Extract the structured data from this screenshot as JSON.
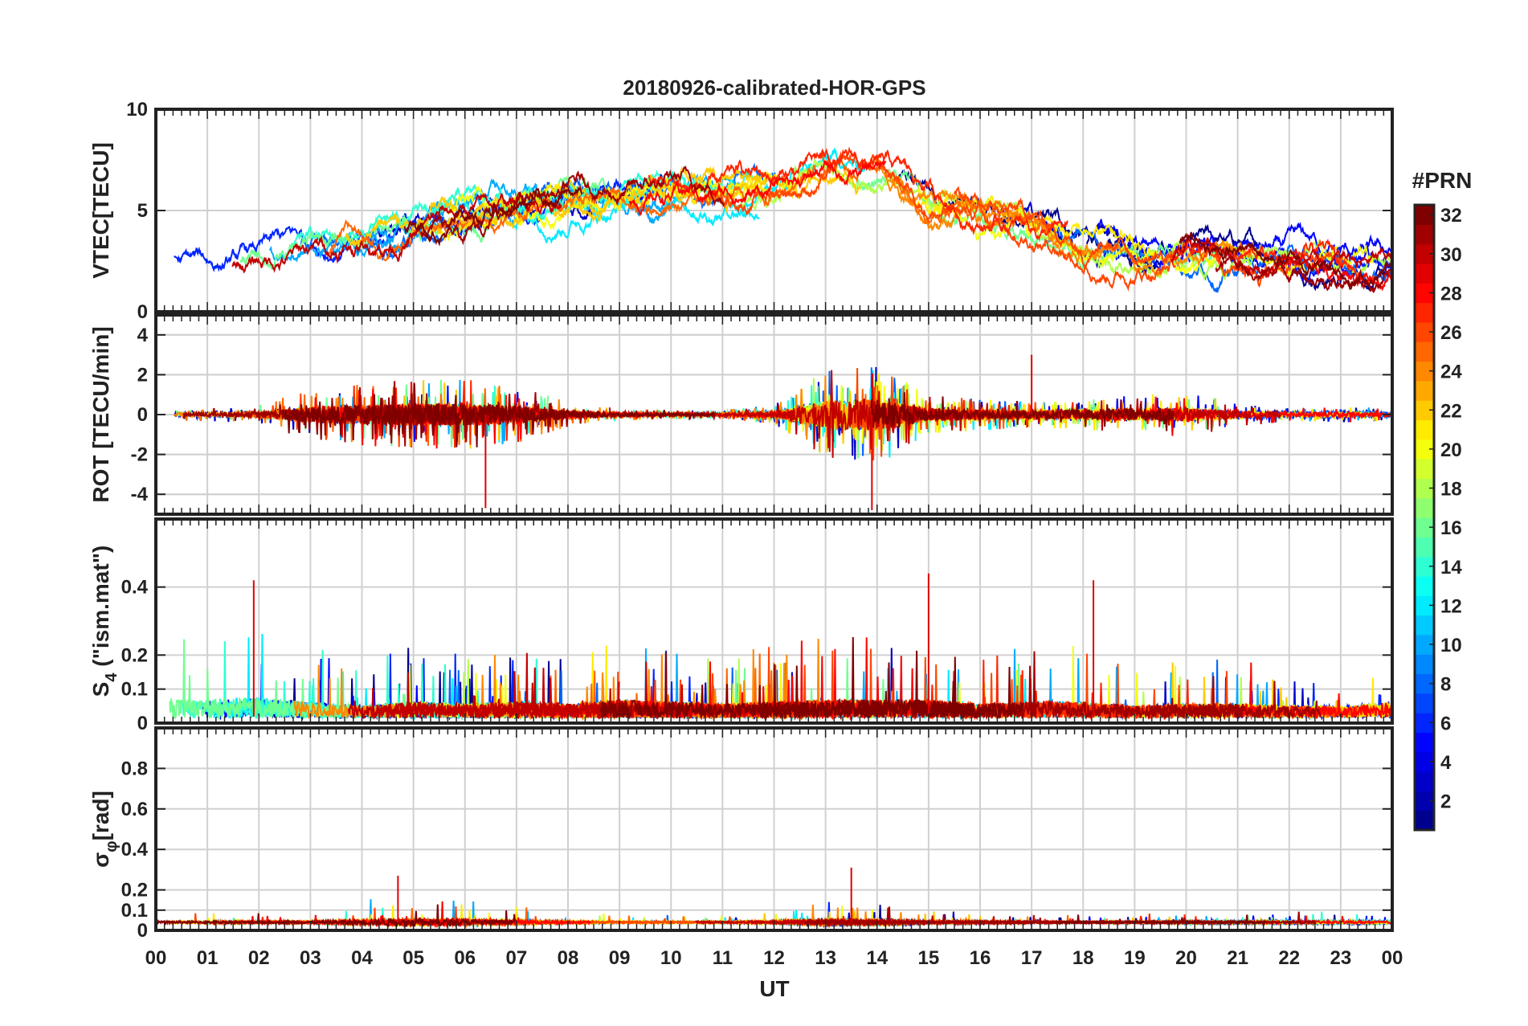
{
  "chart_data": {
    "type": "line",
    "title": "20180926-calibrated-HOR-GPS",
    "xlabel": "UT",
    "x_range": [
      0,
      24
    ],
    "x_tick_labels": [
      "00",
      "01",
      "02",
      "03",
      "04",
      "05",
      "06",
      "07",
      "08",
      "09",
      "10",
      "11",
      "12",
      "13",
      "14",
      "15",
      "16",
      "17",
      "18",
      "19",
      "20",
      "21",
      "22",
      "23",
      "00"
    ],
    "grid": true,
    "panels": [
      {
        "id": "vtec",
        "ylabel": "VTEC[TECU]",
        "ylim": [
          0,
          10
        ],
        "yticks": [
          0,
          5,
          10
        ],
        "envelope_hours": [
          0,
          1,
          2,
          3,
          4,
          5,
          6,
          7,
          8,
          9,
          10,
          11,
          12,
          13,
          14,
          15,
          16,
          17,
          18,
          19,
          20,
          21,
          22,
          23,
          24
        ],
        "envelope_values": [
          2.2,
          2.0,
          2.5,
          3.0,
          3.5,
          4.2,
          4.8,
          5.2,
          5.8,
          6.0,
          6.0,
          5.8,
          6.2,
          7.0,
          6.8,
          5.6,
          4.8,
          4.4,
          3.5,
          3.0,
          2.9,
          2.7,
          2.6,
          2.4,
          2.2
        ]
      },
      {
        "id": "rot",
        "ylabel": "ROT [TECU/min]",
        "ylim": [
          -5,
          5
        ],
        "yticks": [
          -4,
          -2,
          0,
          2,
          4
        ],
        "activity_hours": [
          0,
          1,
          2,
          3,
          4,
          5,
          6,
          7,
          8,
          9,
          10,
          11,
          12,
          13,
          14,
          15,
          16,
          17,
          18,
          19,
          20,
          21,
          22,
          23,
          24
        ],
        "activity_amplitude": [
          0.2,
          0.2,
          0.3,
          0.8,
          1.0,
          1.1,
          1.1,
          0.9,
          0.4,
          0.2,
          0.15,
          0.15,
          0.3,
          1.4,
          1.6,
          0.6,
          0.5,
          0.4,
          0.5,
          0.6,
          0.7,
          0.4,
          0.2,
          0.25,
          0.2
        ]
      },
      {
        "id": "s4",
        "ylabel": "S4 (\"ism.mat\")",
        "ylabel_main": "S",
        "ylabel_sub": "4",
        "ylabel_rest": " (\"ism.mat\")",
        "ylim": [
          0,
          0.6
        ],
        "yticks": [
          0,
          0.1,
          0.2,
          0.4
        ],
        "activity_hours": [
          0,
          1,
          2,
          3,
          4,
          5,
          6,
          7,
          8,
          9,
          10,
          11,
          12,
          13,
          14,
          15,
          16,
          17,
          18,
          19,
          20,
          21,
          22,
          23,
          24
        ],
        "activity_amplitude": [
          0.1,
          0.09,
          0.1,
          0.08,
          0.06,
          0.08,
          0.07,
          0.08,
          0.07,
          0.09,
          0.08,
          0.07,
          0.08,
          0.09,
          0.09,
          0.09,
          0.07,
          0.08,
          0.08,
          0.06,
          0.07,
          0.07,
          0.06,
          0.06,
          0.08
        ]
      },
      {
        "id": "sigphi",
        "ylabel": "σφ[rad]",
        "ylabel_main": "σ",
        "ylabel_sub": "φ",
        "ylabel_rest": "[rad]",
        "ylim": [
          0,
          1.0
        ],
        "yticks": [
          0,
          0.1,
          0.2,
          0.4,
          0.6,
          0.8
        ],
        "baseline": 0.04,
        "activity_hours": [
          0,
          1,
          2,
          3,
          4,
          5,
          6,
          7,
          8,
          9,
          10,
          11,
          12,
          13,
          14,
          15,
          16,
          17,
          18,
          19,
          20,
          21,
          22,
          23,
          24
        ],
        "activity_amplitude": [
          0.02,
          0.02,
          0.02,
          0.02,
          0.04,
          0.06,
          0.05,
          0.03,
          0.02,
          0.015,
          0.015,
          0.015,
          0.02,
          0.05,
          0.04,
          0.02,
          0.02,
          0.015,
          0.015,
          0.015,
          0.02,
          0.02,
          0.02,
          0.02,
          0.02
        ]
      }
    ],
    "colorbar": {
      "title": "#PRN",
      "range": [
        1,
        32
      ],
      "tick_labels": [
        "2",
        "4",
        "6",
        "8",
        "10",
        "12",
        "14",
        "16",
        "18",
        "20",
        "22",
        "24",
        "26",
        "28",
        "30",
        "32"
      ],
      "colors": [
        "#00008f",
        "#0000ff",
        "#0080ff",
        "#00ffff",
        "#80ff80",
        "#ffff00",
        "#ff8000",
        "#ff0000",
        "#800000"
      ]
    },
    "series_prn": [
      1,
      3,
      5,
      6,
      8,
      10,
      12,
      14,
      16,
      18,
      20,
      21,
      22,
      24,
      25,
      26,
      27,
      28,
      30,
      31,
      32
    ],
    "highlight_peaks": [
      {
        "panel": "rot",
        "hour": 6.4,
        "value": -4.7
      },
      {
        "panel": "rot",
        "hour": 13.9,
        "value": -4.8
      },
      {
        "panel": "rot",
        "hour": 17.0,
        "value": 3.0
      },
      {
        "panel": "s4",
        "hour": 1.9,
        "value": 0.42
      },
      {
        "panel": "s4",
        "hour": 15.0,
        "value": 0.44
      },
      {
        "panel": "s4",
        "hour": 18.2,
        "value": 0.42
      },
      {
        "panel": "sigphi",
        "hour": 4.7,
        "value": 0.27
      },
      {
        "panel": "sigphi",
        "hour": 13.5,
        "value": 0.31
      }
    ]
  }
}
